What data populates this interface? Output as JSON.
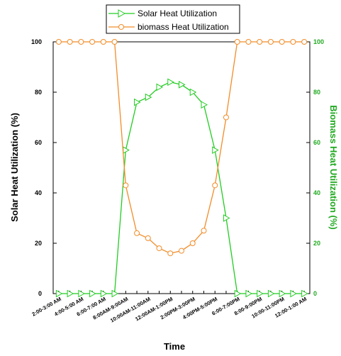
{
  "chart_data": {
    "type": "line",
    "x_label": "Time",
    "y_label_left": "Solar Heat Utilization (%)",
    "y_label_right": "Biomass Heat Utilization (%)",
    "y_left_range": [
      0,
      100
    ],
    "y_right_range": [
      0,
      100
    ],
    "y_left_ticks": [
      "0",
      "20",
      "40",
      "60",
      "80",
      "100"
    ],
    "y_right_ticks": [
      "0",
      "20",
      "40",
      "60",
      "80",
      "100"
    ],
    "categories": [
      "2:00-3:00 AM",
      "",
      "4:00-5:00 AM",
      "",
      "6:00-7:00 AM",
      "",
      "8:00AM-9:00AM",
      "",
      "10:00AM-11:00AM",
      "",
      "12:00AM-1:00PM",
      "",
      "2:00PM-3:00PM",
      "",
      "4:00PM-5:00PM",
      "",
      "6:00-7:00PM",
      "",
      "8:00-9:00PM",
      "",
      "10:00-11:00PM",
      "",
      "12:00-1:00 AM"
    ],
    "x_tick_labels": [
      "2:00-3:00 AM",
      "4:00-5:00 AM",
      "6:00-7:00 AM",
      "8:00AM-9:00AM",
      "10:00AM-11:00AM",
      "12:00AM-1:00PM",
      "2:00PM-3:00PM",
      "4:00PM-5:00PM",
      "6:00-7:00PM",
      "8:00-9:00PM",
      "10:00-11:00PM",
      "12:00-1:00 AM"
    ],
    "series": [
      {
        "name": "Solar Heat Utilization",
        "axis": "left",
        "color": "#22cc22",
        "marker": "triangle-right",
        "values": [
          0,
          0,
          0,
          0,
          0,
          0,
          57,
          76,
          78,
          82,
          84,
          83,
          80,
          75,
          57,
          30,
          0,
          0,
          0,
          0,
          0,
          0,
          0
        ]
      },
      {
        "name": "biomass Heat Utilization",
        "axis": "right",
        "color": "#f28c28",
        "marker": "circle",
        "values": [
          100,
          100,
          100,
          100,
          100,
          100,
          43,
          24,
          22,
          18,
          16,
          17,
          20,
          25,
          43,
          70,
          100,
          100,
          100,
          100,
          100,
          100,
          100
        ]
      }
    ],
    "grid": false,
    "legend_position": "top"
  },
  "colors": {
    "right_axis": "#22aa22",
    "axis": "#000000"
  }
}
